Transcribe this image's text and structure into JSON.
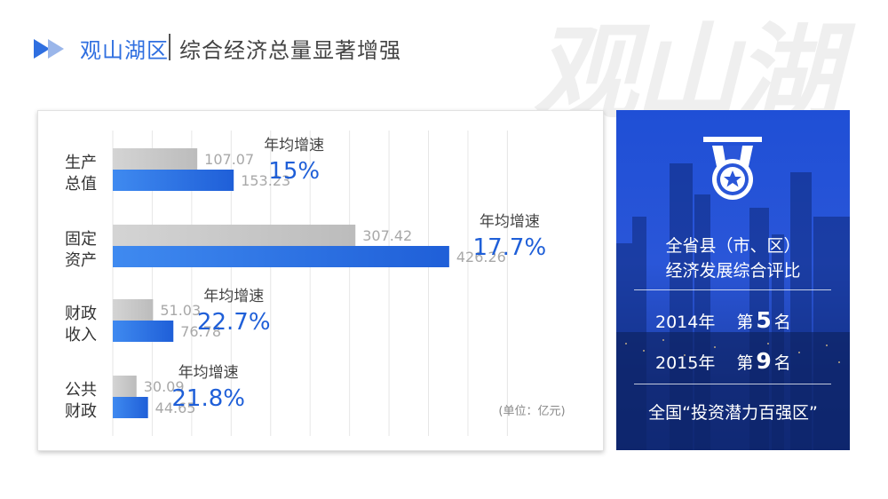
{
  "header": {
    "title": "观山湖区",
    "subtitle": "综合经济总量显著增强",
    "watermark": "观山湖"
  },
  "chart_data": {
    "type": "bar",
    "orientation": "horizontal",
    "categories": [
      [
        "生产",
        "总值"
      ],
      [
        "固定",
        "资产"
      ],
      [
        "财政",
        "收入"
      ],
      [
        "公共",
        "财政"
      ]
    ],
    "series": [
      {
        "values": [
          107.07,
          307.42,
          51.03,
          30.09
        ],
        "color": "#c8c8c8"
      },
      {
        "values": [
          153.23,
          426.26,
          76.78,
          44.65
        ],
        "color": "#2f78e6"
      }
    ],
    "growth": [
      {
        "label": "年均增速",
        "value": "15%"
      },
      {
        "label": "年均增速",
        "value": "17.7%"
      },
      {
        "label": "年均增速",
        "value": "22.7%"
      },
      {
        "label": "年均增速",
        "value": "21.8%"
      }
    ],
    "unit_note": "(单位：亿元)",
    "xlim": [
      0,
      500
    ],
    "grid": true
  },
  "info": {
    "line1": "全省县（市、区）",
    "line2": "经济发展综合评比",
    "rank_2014": {
      "year": "2014年",
      "pre": "第",
      "num": "5",
      "post": "名"
    },
    "rank_2015": {
      "year": "2015年",
      "pre": "第",
      "num": "9",
      "post": "名"
    },
    "line3": "全国“投资潜力百强区”",
    "icon": "medal-icon"
  }
}
